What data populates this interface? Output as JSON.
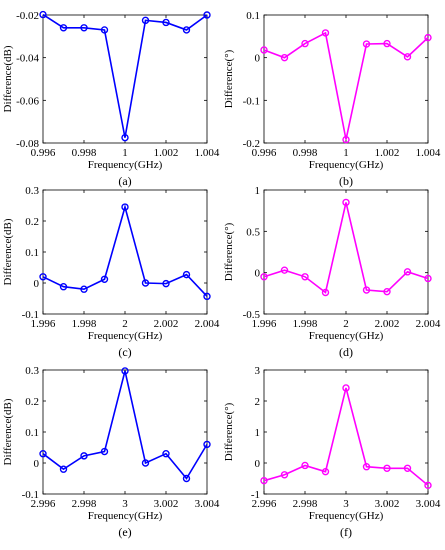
{
  "chart_data": [
    {
      "panel": "(a)",
      "type": "line",
      "xlabel": "Frequency(GHz)",
      "ylabel": "Difference(dB)",
      "xlim": [
        0.996,
        1.004
      ],
      "ylim": [
        -0.08,
        -0.02
      ],
      "xticks": [
        0.996,
        0.998,
        1,
        1.002,
        1.004
      ],
      "xtick_labels": [
        "0.996",
        "0.998",
        "1",
        "1.002",
        "1.004"
      ],
      "yticks": [
        -0.08,
        -0.06,
        -0.04,
        -0.02
      ],
      "ytick_labels": [
        "-0.08",
        "-0.06",
        "-0.04",
        "-0.02"
      ],
      "color": "#0000ff",
      "grid": false,
      "series": [
        {
          "x": [
            0.996,
            0.997,
            0.998,
            0.999,
            1.0,
            1.001,
            1.002,
            1.003,
            1.004
          ],
          "y": [
            -0.0198,
            -0.026,
            -0.026,
            -0.027,
            -0.0775,
            -0.0225,
            -0.0235,
            -0.027,
            -0.02
          ]
        }
      ]
    },
    {
      "panel": "(b)",
      "type": "line",
      "xlabel": "Frequency(GHz)",
      "ylabel": "Difference(°)",
      "xlim": [
        0.996,
        1.004
      ],
      "ylim": [
        -0.2,
        0.1
      ],
      "xticks": [
        0.996,
        0.998,
        1,
        1.002,
        1.004
      ],
      "xtick_labels": [
        "0.996",
        "0.998",
        "1",
        "1.002",
        "1.004"
      ],
      "yticks": [
        -0.2,
        -0.1,
        0,
        0.1
      ],
      "ytick_labels": [
        "-0.2",
        "-0.1",
        "0",
        "0.1"
      ],
      "color": "#ff00ff",
      "grid": false,
      "series": [
        {
          "x": [
            0.996,
            0.997,
            0.998,
            0.999,
            1.0,
            1.001,
            1.002,
            1.003,
            1.004
          ],
          "y": [
            0.018,
            0.0,
            0.033,
            0.058,
            -0.192,
            0.032,
            0.033,
            0.002,
            0.047
          ]
        }
      ]
    },
    {
      "panel": "(c)",
      "type": "line",
      "xlabel": "Frequency(GHz)",
      "ylabel": "Difference(dB)",
      "xlim": [
        1.996,
        2.004
      ],
      "ylim": [
        -0.1,
        0.3
      ],
      "xticks": [
        1.996,
        1.998,
        2,
        2.002,
        2.004
      ],
      "xtick_labels": [
        "1.996",
        "1.998",
        "2",
        "2.002",
        "2.004"
      ],
      "yticks": [
        -0.1,
        0,
        0.1,
        0.2,
        0.3
      ],
      "ytick_labels": [
        "-0.1",
        "0",
        "0.1",
        "0.2",
        "0.3"
      ],
      "color": "#0000ff",
      "grid": false,
      "series": [
        {
          "x": [
            1.996,
            1.997,
            1.998,
            1.999,
            2.0,
            2.001,
            2.002,
            2.003,
            2.004
          ],
          "y": [
            0.02,
            -0.012,
            -0.02,
            0.012,
            0.245,
            0.0,
            -0.002,
            0.027,
            -0.043
          ]
        }
      ]
    },
    {
      "panel": "(d)",
      "type": "line",
      "xlabel": "Frequency(GHz)",
      "ylabel": "Difference(°)",
      "xlim": [
        1.996,
        2.004
      ],
      "ylim": [
        -0.5,
        1
      ],
      "xticks": [
        1.996,
        1.998,
        2,
        2.002,
        2.004
      ],
      "xtick_labels": [
        "1.996",
        "1.998",
        "2",
        "2.002",
        "2.004"
      ],
      "yticks": [
        -0.5,
        0,
        0.5,
        1
      ],
      "ytick_labels": [
        "-0.5",
        "0",
        "0.5",
        "1"
      ],
      "color": "#ff00ff",
      "grid": false,
      "series": [
        {
          "x": [
            1.996,
            1.997,
            1.998,
            1.999,
            2.0,
            2.001,
            2.002,
            2.003,
            2.004
          ],
          "y": [
            -0.05,
            0.03,
            -0.05,
            -0.24,
            0.85,
            -0.21,
            -0.23,
            0.01,
            -0.07
          ]
        }
      ]
    },
    {
      "panel": "(e)",
      "type": "line",
      "xlabel": "Frequency(GHz)",
      "ylabel": "Difference(dB)",
      "xlim": [
        2.996,
        3.004
      ],
      "ylim": [
        -0.1,
        0.3
      ],
      "xticks": [
        2.996,
        2.998,
        3,
        3.002,
        3.004
      ],
      "xtick_labels": [
        "2.996",
        "2.998",
        "3",
        "3.002",
        "3.004"
      ],
      "yticks": [
        -0.1,
        0,
        0.1,
        0.2,
        0.3
      ],
      "ytick_labels": [
        "-0.1",
        "0",
        "0.1",
        "0.2",
        "0.3"
      ],
      "color": "#0000ff",
      "grid": false,
      "series": [
        {
          "x": [
            2.996,
            2.997,
            2.998,
            2.999,
            3.0,
            3.001,
            3.002,
            3.003,
            3.004
          ],
          "y": [
            0.03,
            -0.02,
            0.023,
            0.037,
            0.297,
            0.0,
            0.03,
            -0.05,
            0.06
          ]
        }
      ]
    },
    {
      "panel": "(f)",
      "type": "line",
      "xlabel": "Frequency(GHz)",
      "ylabel": "Difference(°)",
      "xlim": [
        2.996,
        3.004
      ],
      "ylim": [
        -1,
        3
      ],
      "xticks": [
        2.996,
        2.998,
        3,
        3.002,
        3.004
      ],
      "xtick_labels": [
        "2.996",
        "2.998",
        "3",
        "3.002",
        "3.004"
      ],
      "yticks": [
        -1,
        0,
        1,
        2,
        3
      ],
      "ytick_labels": [
        "-1",
        "0",
        "1",
        "2",
        "3"
      ],
      "color": "#ff00ff",
      "grid": false,
      "series": [
        {
          "x": [
            2.996,
            2.997,
            2.998,
            2.999,
            3.0,
            3.001,
            3.002,
            3.003,
            3.004
          ],
          "y": [
            -0.57,
            -0.38,
            -0.08,
            -0.28,
            2.42,
            -0.12,
            -0.17,
            -0.17,
            -0.72
          ]
        }
      ]
    }
  ]
}
